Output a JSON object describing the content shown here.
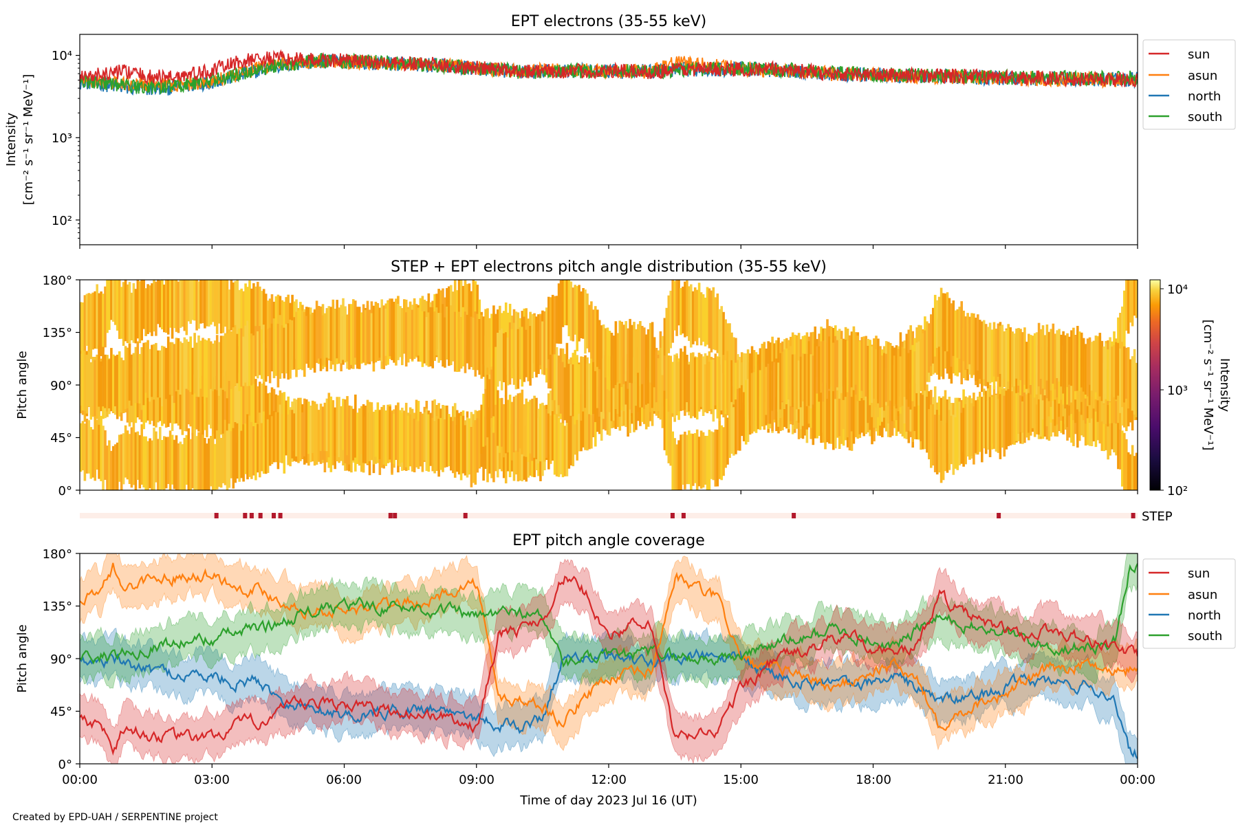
{
  "footer": "Created by EPD-UAH / SERPENTINE project",
  "x_axis": {
    "label": "Time of day 2023 Jul 16 (UT)",
    "range_hours": [
      0,
      24
    ],
    "ticks": [
      0,
      3,
      6,
      9,
      12,
      15,
      18,
      21,
      24
    ],
    "tick_labels": [
      "00:00",
      "03:00",
      "06:00",
      "09:00",
      "12:00",
      "15:00",
      "18:00",
      "21:00",
      "00:00"
    ]
  },
  "panel1": {
    "title": "EPT electrons (35-55 keV)",
    "ylabel_line1": "Intensity",
    "ylabel_line2": "[cm⁻² s⁻¹ sr⁻¹ MeV⁻¹]",
    "ytick_labels": [
      "10⁴",
      "10³",
      "10²"
    ]
  },
  "panel2": {
    "title": "STEP + EPT electrons pitch angle distribution (35-55 keV)",
    "ylabel": "Pitch angle",
    "ytick_labels": [
      "180°",
      "135°",
      "90°",
      "45°",
      "0°"
    ],
    "colorbar_label_line1": "Intensity",
    "colorbar_label_line2": "[cm⁻² s⁻¹ sr⁻¹ MeV⁻¹]",
    "colorbar_tick_labels": [
      "10⁴",
      "10³",
      "10²"
    ]
  },
  "step_strip": {
    "label": "STEP",
    "marks_hours": [
      3.1,
      3.75,
      3.9,
      4.1,
      4.4,
      4.55,
      7.05,
      7.15,
      8.75,
      13.45,
      13.7,
      16.2,
      20.85,
      23.9
    ]
  },
  "panel3": {
    "title": "EPT pitch angle coverage",
    "ylabel": "Pitch angle",
    "ytick_labels": [
      "180°",
      "135°",
      "90°",
      "45°",
      "0°"
    ]
  },
  "legend": [
    "sun",
    "asun",
    "north",
    "south"
  ],
  "colors": {
    "sun": "#d62728",
    "asun": "#ff7f0e",
    "north": "#1f77b4",
    "south": "#2ca02c",
    "step_bg": "#fdeee8",
    "step_mark": "#b2182b"
  },
  "chart_data": [
    {
      "type": "line",
      "title": "EPT electrons (35-55 keV)",
      "ylabel": "Intensity [cm⁻² s⁻¹ sr⁻¹ MeV⁻¹]",
      "xlabel": "Time of day 2023 Jul 16 (UT)",
      "yscale": "log",
      "ylim": [
        50,
        18000
      ],
      "xlim": [
        0,
        24
      ],
      "legend_position": "outside right",
      "x": [
        0,
        0.5,
        1,
        1.5,
        2,
        2.5,
        3,
        3.5,
        4,
        4.5,
        5,
        5.5,
        6,
        7,
        8,
        9,
        10,
        11,
        12,
        13,
        13.5,
        14,
        15,
        16,
        17,
        18,
        19,
        20,
        21,
        22,
        23,
        24
      ],
      "series": [
        {
          "name": "sun",
          "values": [
            5500,
            5800,
            6500,
            5500,
            5500,
            5800,
            6500,
            8000,
            9000,
            9200,
            8800,
            8800,
            8600,
            8000,
            7800,
            7000,
            6500,
            6400,
            6400,
            6300,
            6800,
            6800,
            6800,
            6800,
            6000,
            5800,
            5700,
            5600,
            5400,
            5300,
            5200,
            5000
          ]
        },
        {
          "name": "asun",
          "values": [
            5000,
            4800,
            4500,
            4500,
            4400,
            4500,
            4800,
            5500,
            7000,
            7800,
            8300,
            8500,
            8500,
            8000,
            7600,
            7000,
            6400,
            6600,
            6500,
            6400,
            8200,
            7800,
            6900,
            6600,
            6000,
            5800,
            5600,
            5500,
            5300,
            5200,
            5100,
            5000
          ]
        },
        {
          "name": "north",
          "values": [
            4800,
            4500,
            4000,
            3900,
            4000,
            4300,
            4800,
            5500,
            6500,
            7500,
            8000,
            8400,
            8400,
            8000,
            7600,
            7000,
            6300,
            6500,
            6400,
            6400,
            6600,
            6800,
            6800,
            6600,
            6000,
            5800,
            5600,
            5500,
            5300,
            5200,
            5100,
            5100
          ]
        },
        {
          "name": "south",
          "values": [
            5000,
            4700,
            4300,
            4100,
            4200,
            4500,
            5000,
            5600,
            6600,
            7600,
            8200,
            8600,
            8600,
            8100,
            7700,
            7000,
            6300,
            6500,
            6400,
            6400,
            6600,
            6800,
            6900,
            6700,
            6100,
            5900,
            5700,
            5600,
            5400,
            5300,
            5300,
            5400
          ]
        }
      ]
    },
    {
      "type": "heatmap",
      "title": "STEP + EPT electrons pitch angle distribution (35-55 keV)",
      "ylabel": "Pitch angle",
      "ylim": [
        0,
        180
      ],
      "xlim": [
        0,
        24
      ],
      "colorbar": {
        "label": "Intensity [cm⁻² s⁻¹ sr⁻¹ MeV⁻¹]",
        "scale": "log",
        "range": [
          100,
          12000
        ],
        "colormap": "inferno"
      },
      "note_values": "intensity approximately 3000-10000 across covered pitch angles; white where no coverage"
    },
    {
      "type": "line",
      "title": "EPT pitch angle coverage",
      "ylabel": "Pitch angle",
      "xlabel": "Time of day 2023 Jul 16 (UT)",
      "ylim": [
        0,
        180
      ],
      "xlim": [
        0,
        24
      ],
      "legend_position": "outside right",
      "x": [
        0,
        0.5,
        0.75,
        1,
        1.5,
        2,
        2.5,
        3,
        3.5,
        4,
        4.5,
        5,
        6,
        7,
        8,
        8.5,
        9,
        9.5,
        10,
        10.5,
        11,
        11.5,
        12,
        12.5,
        13,
        13.5,
        14,
        14.5,
        15,
        15.5,
        16,
        16.5,
        17,
        17.5,
        18,
        18.5,
        19,
        19.5,
        20,
        20.5,
        21,
        21.5,
        22,
        22.5,
        23,
        23.5,
        23.8,
        24
      ],
      "series": [
        {
          "name": "sun",
          "values": [
            38,
            33,
            12,
            32,
            25,
            22,
            21,
            22,
            32,
            36,
            45,
            50,
            52,
            45,
            42,
            38,
            30,
            110,
            115,
            125,
            160,
            145,
            110,
            118,
            115,
            20,
            25,
            30,
            65,
            80,
            95,
            95,
            105,
            110,
            100,
            95,
            100,
            145,
            130,
            120,
            115,
            110,
            115,
            110,
            105,
            100,
            95,
            90
          ]
        },
        {
          "name": "asun",
          "values": [
            140,
            145,
            168,
            150,
            157,
            160,
            163,
            163,
            152,
            150,
            142,
            133,
            130,
            135,
            140,
            150,
            155,
            55,
            55,
            50,
            35,
            60,
            75,
            75,
            80,
            160,
            150,
            140,
            90,
            80,
            80,
            75,
            65,
            70,
            80,
            85,
            70,
            35,
            45,
            55,
            60,
            70,
            80,
            85,
            85,
            80,
            80,
            85
          ]
        },
        {
          "name": "north",
          "values": [
            90,
            87,
            90,
            85,
            80,
            78,
            76,
            75,
            70,
            72,
            58,
            50,
            42,
            45,
            48,
            45,
            40,
            35,
            30,
            40,
            95,
            90,
            90,
            88,
            85,
            90,
            92,
            90,
            88,
            80,
            75,
            70,
            70,
            65,
            70,
            75,
            65,
            55,
            55,
            60,
            65,
            70,
            70,
            68,
            65,
            55,
            10,
            8
          ]
        },
        {
          "name": "south",
          "values": [
            90,
            93,
            90,
            95,
            100,
            103,
            105,
            107,
            112,
            115,
            120,
            128,
            135,
            135,
            132,
            130,
            125,
            128,
            130,
            125,
            85,
            90,
            90,
            92,
            95,
            92,
            90,
            90,
            92,
            100,
            105,
            108,
            115,
            112,
            105,
            100,
            115,
            125,
            120,
            115,
            112,
            105,
            100,
            100,
            100,
            105,
            165,
            170
          ]
        }
      ]
    }
  ]
}
